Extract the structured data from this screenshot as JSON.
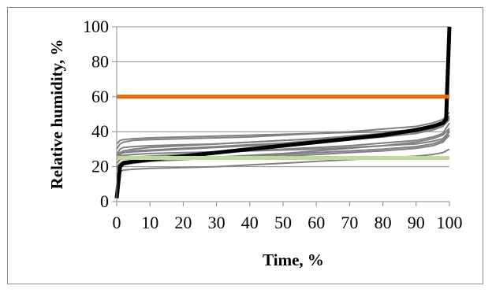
{
  "chart_data": {
    "type": "line",
    "xlabel": "Time, %",
    "ylabel": "Relative humidity, %",
    "xlim": [
      0,
      100
    ],
    "ylim": [
      0,
      100
    ],
    "x_ticks": [
      0,
      10,
      20,
      30,
      40,
      50,
      60,
      70,
      80,
      90,
      100
    ],
    "y_ticks": [
      0,
      20,
      40,
      60,
      80,
      100
    ],
    "grid": "horizontal",
    "legend": "none",
    "colors": {
      "gray": "#808080",
      "black": "#000000",
      "orange": "#e36c0a",
      "green": "#c3d69b"
    },
    "x": [
      0,
      1,
      2,
      5,
      10,
      20,
      30,
      40,
      50,
      60,
      70,
      80,
      90,
      95,
      98,
      99,
      100
    ],
    "series": [
      {
        "values": [
          24,
          27,
          28,
          29,
          29.5,
          30.5,
          31.5,
          32.5,
          33.5,
          35,
          36.5,
          38,
          40,
          42,
          44,
          46,
          48
        ],
        "color": "#808080"
      },
      {
        "values": [
          19,
          21,
          22,
          23,
          23.5,
          24.5,
          25.5,
          26.5,
          27.5,
          29,
          30.5,
          32,
          34,
          36,
          38,
          40,
          42
        ],
        "color": "#808080"
      },
      {
        "values": [
          16,
          17,
          18,
          18.5,
          19,
          19.5,
          20,
          21,
          22,
          23,
          24,
          25,
          26,
          27,
          28,
          29,
          30
        ],
        "color": "#808080"
      },
      {
        "values": [
          26,
          28,
          29,
          30,
          31,
          32,
          33,
          34,
          35,
          36,
          37.5,
          39,
          41,
          43,
          45,
          47,
          49
        ],
        "color": "#808080"
      },
      {
        "values": [
          30,
          33,
          34,
          35,
          35.5,
          36,
          36.5,
          37,
          38,
          39,
          40,
          41.5,
          43,
          45,
          47,
          49,
          51
        ],
        "color": "#808080"
      },
      {
        "values": [
          33,
          35,
          35.5,
          36,
          36.5,
          37,
          37.5,
          38,
          38.5,
          39,
          39.5,
          40,
          41,
          42.5,
          44,
          46,
          48
        ],
        "color": "#808080"
      },
      {
        "values": [
          22,
          24,
          25,
          25.5,
          26,
          27,
          28,
          29,
          30,
          31,
          32,
          33.5,
          35,
          37,
          39,
          42,
          45
        ],
        "color": "#808080"
      },
      {
        "values": [
          20,
          22,
          23,
          23.5,
          24,
          24.5,
          25,
          25.5,
          26,
          27,
          28,
          29,
          30.5,
          32,
          34,
          36,
          38
        ],
        "color": "#808080"
      },
      {
        "values": [
          27,
          30,
          31,
          31.5,
          32,
          32.5,
          33,
          34,
          35,
          36,
          37,
          38.5,
          40,
          42,
          44,
          46,
          48
        ],
        "color": "#808080"
      },
      {
        "values": [
          18,
          20,
          21,
          22,
          23,
          24,
          25,
          26,
          27,
          28,
          29,
          30,
          31.5,
          33,
          35,
          37,
          40
        ],
        "color": "#808080"
      },
      {
        "values": [
          25,
          27,
          28,
          28.5,
          29,
          30,
          31,
          32,
          33,
          34,
          35.5,
          37,
          39,
          41,
          43,
          45,
          47
        ],
        "color": "#808080"
      },
      {
        "values": [
          24,
          26,
          26.5,
          27,
          27.5,
          28,
          28.5,
          29,
          29.5,
          30,
          31,
          32,
          33,
          34.5,
          36,
          38,
          41
        ],
        "color": "#808080"
      },
      {
        "values": [
          2,
          20,
          22,
          23,
          24,
          26,
          28,
          30,
          32,
          34,
          36,
          38,
          41,
          43,
          45,
          47,
          100
        ],
        "color": "#000000",
        "thick": true
      }
    ],
    "reference_lines": [
      {
        "y": 60,
        "color": "#e36c0a"
      },
      {
        "y": 25,
        "color": "#c3d69b"
      }
    ]
  }
}
